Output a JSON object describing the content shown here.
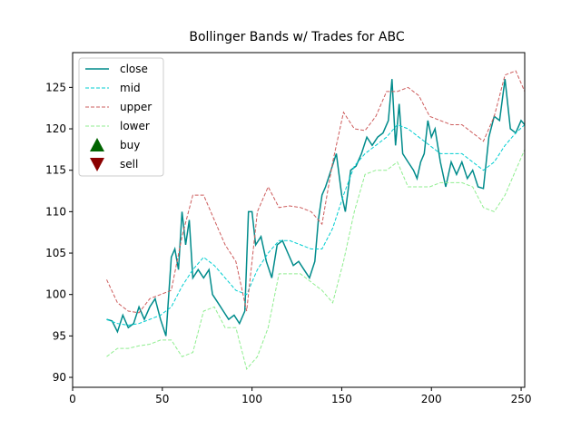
{
  "chart_data": {
    "type": "line",
    "title": "Bollinger Bands w/ Trades for ABC",
    "xlim": [
      0,
      252
    ],
    "ylim": [
      88.8,
      129.2
    ],
    "xticks": [
      0,
      50,
      100,
      150,
      200,
      250
    ],
    "yticks": [
      90,
      95,
      100,
      105,
      110,
      115,
      120,
      125
    ],
    "legend": "upper left",
    "series": [
      {
        "name": "close",
        "color": "#008b8b",
        "linestyle": "-",
        "x": [
          19,
          22,
          25,
          28,
          31,
          34,
          37,
          40,
          43,
          46,
          49,
          52,
          55,
          57,
          59,
          61,
          63,
          65,
          67,
          70,
          73,
          76,
          78,
          81,
          84,
          87,
          90,
          93,
          96,
          98,
          100,
          102,
          105,
          108,
          111,
          114,
          117,
          120,
          123,
          126,
          129,
          132,
          135,
          137,
          139,
          141,
          144,
          147,
          150,
          152,
          155,
          158,
          161,
          164,
          167,
          170,
          173,
          176,
          178,
          180,
          182,
          184,
          187,
          190,
          192,
          194,
          196,
          198,
          200,
          202,
          205,
          208,
          211,
          214,
          217,
          220,
          223,
          226,
          229,
          232,
          235,
          238,
          241,
          244,
          247,
          250,
          252
        ],
        "values": [
          97,
          96.8,
          95.5,
          97.5,
          96,
          96.5,
          98.5,
          97,
          98.5,
          99.5,
          97,
          95,
          104.5,
          105.5,
          103,
          110,
          106,
          109,
          102,
          103,
          102,
          103,
          100,
          99,
          98,
          97,
          97.5,
          96.5,
          98,
          110,
          110,
          106,
          107,
          104,
          102,
          106,
          106.5,
          105,
          103.5,
          104,
          103,
          102,
          104,
          109,
          112,
          113,
          115,
          117,
          112,
          110,
          115,
          115.5,
          117,
          119,
          118,
          119,
          119.5,
          121,
          126,
          118,
          123,
          117,
          116,
          115,
          114,
          116,
          117,
          121,
          119,
          120,
          116,
          113,
          116,
          114.5,
          116,
          114,
          115,
          113,
          112.8,
          119,
          121.5,
          121,
          126,
          120,
          119.5,
          121,
          120.5
        ]
      },
      {
        "name": "mid",
        "color": "#00ced1",
        "linestyle": "--",
        "x": [
          19,
          25,
          31,
          37,
          43,
          49,
          55,
          61,
          67,
          73,
          79,
          85,
          91,
          97,
          103,
          109,
          115,
          121,
          127,
          133,
          139,
          145,
          151,
          157,
          163,
          169,
          175,
          181,
          187,
          193,
          199,
          205,
          211,
          217,
          223,
          229,
          235,
          241,
          247,
          252
        ],
        "values": [
          97,
          96.5,
          96.3,
          96.5,
          97,
          97.5,
          98.5,
          101,
          103,
          104.5,
          103.5,
          102,
          100.5,
          100,
          103,
          105,
          106.5,
          106.5,
          106,
          105.5,
          105.5,
          108,
          112,
          115.5,
          117,
          118,
          119,
          120.5,
          120,
          119,
          118,
          117,
          117,
          117,
          116,
          115,
          116,
          118,
          119.5,
          120.5
        ]
      },
      {
        "name": "upper",
        "color": "#cd5c5c",
        "linestyle": "--",
        "x": [
          19,
          25,
          31,
          37,
          43,
          49,
          55,
          61,
          67,
          73,
          79,
          85,
          91,
          97,
          103,
          109,
          115,
          121,
          127,
          133,
          139,
          145,
          151,
          157,
          163,
          169,
          175,
          181,
          187,
          193,
          199,
          205,
          211,
          217,
          223,
          229,
          235,
          241,
          247,
          252
        ],
        "values": [
          101.8,
          99,
          98,
          97.8,
          99.5,
          100,
          100.5,
          107,
          112,
          112,
          109,
          106,
          104,
          98,
          110,
          113,
          110.5,
          110.7,
          110.5,
          110,
          108.5,
          116,
          122,
          120,
          119.8,
          121.5,
          124.5,
          124.5,
          125,
          124,
          121.5,
          121,
          120.5,
          120.5,
          119.5,
          118.5,
          121.5,
          126.5,
          127,
          124.5
        ]
      },
      {
        "name": "lower",
        "color": "#90ee90",
        "linestyle": "--",
        "x": [
          19,
          25,
          31,
          37,
          43,
          49,
          55,
          61,
          67,
          73,
          79,
          85,
          91,
          97,
          103,
          109,
          115,
          121,
          127,
          133,
          139,
          145,
          151,
          157,
          163,
          169,
          175,
          181,
          187,
          193,
          199,
          205,
          211,
          217,
          223,
          229,
          235,
          241,
          247,
          252
        ],
        "values": [
          92.5,
          93.5,
          93.5,
          93.8,
          94,
          94.5,
          94.5,
          92.5,
          93,
          98,
          98.5,
          96,
          96,
          91,
          92.5,
          96,
          102.5,
          102.5,
          102.5,
          101.5,
          100.5,
          99,
          104,
          110,
          114.5,
          115,
          115,
          116,
          113,
          113,
          113,
          113.5,
          113.5,
          113.5,
          113,
          110.5,
          110,
          112,
          115,
          117.5
        ]
      },
      {
        "name": "buy",
        "color": "#006400",
        "marker": "^",
        "x": [],
        "values": []
      },
      {
        "name": "sell",
        "color": "#8b0000",
        "marker": "v",
        "x": [],
        "values": []
      }
    ]
  }
}
